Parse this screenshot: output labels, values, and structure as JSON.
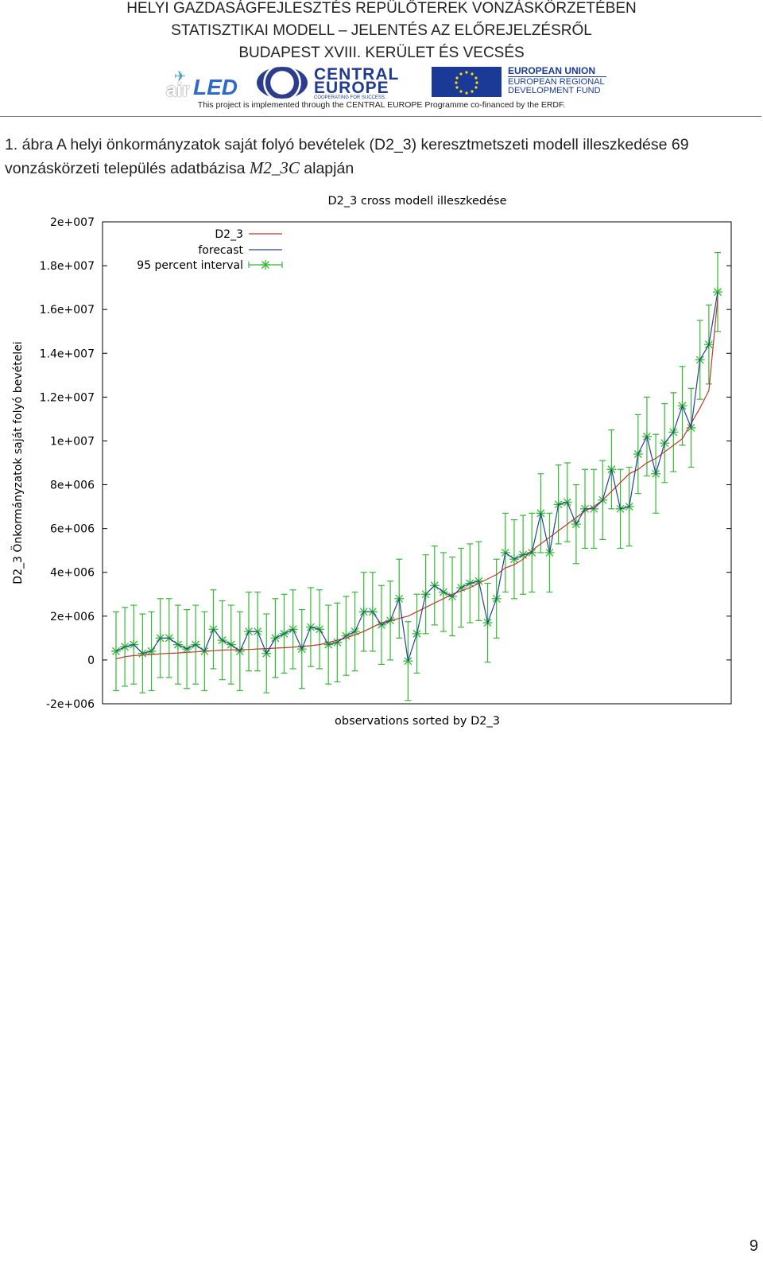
{
  "header": {
    "line1": "HELYI GAZDASÁGFEJLESZTÉS REPÜLŐTEREK VONZÁSKÖRZETÉBEN",
    "line2": "STATISZTIKAI MODELL – JELENTÉS AZ ELŐREJELZÉSRŐL",
    "line3": "BUDAPEST XVIII. KERÜLET ÉS VECSÉS"
  },
  "logos": {
    "airled_a": "air",
    "airled_led": "LED",
    "ce_line1": "CENTRAL",
    "ce_line2": "EUROPE",
    "ce_sub": "COOPERATING FOR SUCCESS.",
    "eu_line1": "EUROPEAN UNION",
    "eu_line2": "EUROPEAN REGIONAL",
    "eu_line3": "DEVELOPMENT FUND",
    "project_line": "This project is implemented through the CENTRAL EUROPE Programme co-financed by the ERDF."
  },
  "caption": {
    "text_before": "1. ábra A helyi önkormányzatok saját folyó bevételek (D2_3) keresztmetszeti modell illeszkedése 69 vonzáskörzeti település adatbázisa ",
    "math": "M2_3C",
    "text_after": " alapján"
  },
  "page_number": "9",
  "colors": {
    "actual": "#c0392b",
    "forecast": "#2a3fa0",
    "interval": "#33bb33"
  },
  "chart_data": {
    "type": "line",
    "title": "D2_3 cross modell illeszkedése",
    "xlabel": "observations sorted by D2_3",
    "ylabel": "D2_3 Önkormányzatok saját folyó bevételei",
    "ylim": [
      -2000000,
      20000000
    ],
    "yticks": [
      -2000000,
      0,
      2000000,
      4000000,
      6000000,
      8000000,
      10000000,
      12000000,
      14000000,
      16000000,
      18000000,
      20000000
    ],
    "ytick_labels": [
      "-2e+006",
      "0",
      "2e+006",
      "4e+006",
      "6e+006",
      "8e+006",
      "1e+007",
      "1.2e+007",
      "1.4e+007",
      "1.6e+007",
      "1.8e+007",
      "2e+007"
    ],
    "legend_position": "top-left",
    "grid": false,
    "series": [
      {
        "name": "D2_3",
        "values": [
          50000,
          150000,
          200000,
          220000,
          250000,
          280000,
          300000,
          320000,
          350000,
          370000,
          400000,
          420000,
          450000,
          460000,
          470000,
          480000,
          500000,
          520000,
          540000,
          560000,
          580000,
          620000,
          650000,
          700000,
          800000,
          900000,
          1000000,
          1150000,
          1300000,
          1500000,
          1700000,
          1800000,
          1900000,
          2000000,
          2200000,
          2400000,
          2600000,
          2800000,
          3000000,
          3150000,
          3300000,
          3500000,
          3700000,
          3900000,
          4200000,
          4350000,
          4600000,
          5000000,
          5300000,
          5600000,
          5900000,
          6200000,
          6500000,
          6800000,
          7000000,
          7300000,
          7700000,
          8100000,
          8500000,
          8700000,
          9000000,
          9200000,
          9500000,
          9800000,
          10100000,
          10800000,
          11500000,
          12300000,
          16500000
        ]
      },
      {
        "name": "forecast",
        "values": [
          400000,
          600000,
          700000,
          300000,
          400000,
          1000000,
          1000000,
          700000,
          500000,
          700000,
          400000,
          1400000,
          900000,
          700000,
          400000,
          1300000,
          1300000,
          300000,
          1000000,
          1200000,
          1400000,
          500000,
          1500000,
          1400000,
          700000,
          800000,
          1100000,
          1300000,
          2200000,
          2200000,
          1600000,
          1800000,
          2800000,
          -50000,
          1200000,
          3000000,
          3400000,
          3100000,
          2900000,
          3300000,
          3500000,
          3600000,
          1700000,
          2800000,
          4900000,
          4600000,
          4800000,
          4900000,
          6700000,
          4900000,
          7100000,
          7200000,
          6200000,
          6900000,
          6900000,
          7300000,
          8700000,
          6900000,
          7000000,
          9400000,
          10200000,
          8500000,
          9900000,
          10400000,
          11600000,
          10600000,
          13700000,
          14400000,
          16800000
        ]
      },
      {
        "name": "95 percent interval",
        "half_width": 1800000
      }
    ]
  }
}
